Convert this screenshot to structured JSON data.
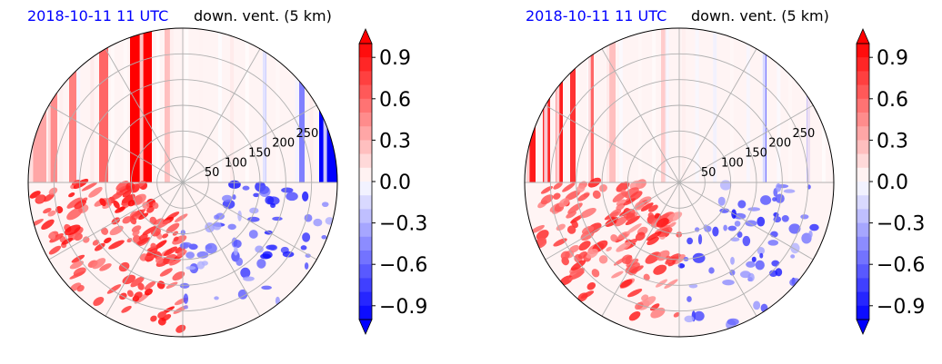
{
  "chart_data": [
    {
      "type": "heatmap",
      "projection": "polar",
      "title": "down. vent. (5 km)",
      "title_left": "2018-10-11 11 UTC",
      "radial_ticks": [
        50,
        100,
        150,
        200,
        250
      ],
      "radial_range": [
        0,
        300
      ],
      "colorbar": {
        "ticks": [
          0.9,
          0.6,
          0.3,
          0.0,
          -0.3,
          -0.6,
          -0.9
        ],
        "tick_labels": [
          "0.9",
          "0.6",
          "0.3",
          "0.0",
          "−0.3",
          "−0.6",
          "−0.9"
        ],
        "range": [
          -1.0,
          1.0
        ],
        "extend": "both",
        "colormap": "bwr"
      },
      "grid": true
    },
    {
      "type": "heatmap",
      "projection": "polar",
      "title": "down. vent. (5 km)",
      "title_left": "2018-10-11 11 UTC",
      "radial_ticks": [
        50,
        100,
        150,
        200,
        250
      ],
      "radial_range": [
        0,
        300
      ],
      "colorbar": {
        "ticks": [
          0.9,
          0.6,
          0.3,
          0.0,
          -0.3,
          -0.6,
          -0.9
        ],
        "tick_labels": [
          "0.9",
          "0.6",
          "0.3",
          "0.0",
          "−0.3",
          "−0.6",
          "−0.9"
        ],
        "range": [
          -1.0,
          1.0
        ],
        "extend": "both",
        "colormap": "bwr"
      },
      "grid": true
    }
  ],
  "colors": {
    "title_left": "#0000ff",
    "title": "#000000",
    "positive": "#ff0000",
    "negative": "#0000ff",
    "neutral": "#ffffff",
    "grid": "#b0b0b0"
  }
}
